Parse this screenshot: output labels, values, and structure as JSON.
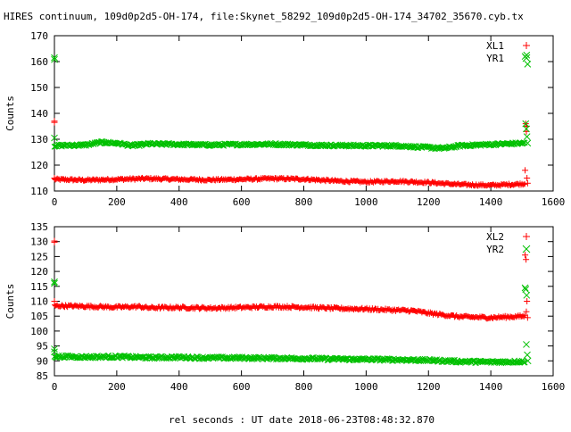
{
  "chart_data": [
    {
      "type": "scatter",
      "title": "HIRES continuum, 109d0p2d5-OH-174, file:Skynet_58292_109d0p2d5-OH-174_34702_35670.cyb.tx",
      "xlabel": "",
      "ylabel": "Counts",
      "xlim": [
        0,
        1600
      ],
      "ylim": [
        110,
        170
      ],
      "xticks": [
        "0",
        "200",
        "400",
        "600",
        "800",
        "1000",
        "1200",
        "1400",
        "1600"
      ],
      "yticks": [
        "110",
        "120",
        "130",
        "140",
        "150",
        "160",
        "170"
      ],
      "legend_position": "top-right",
      "series": [
        {
          "name": "XL1",
          "marker": "+",
          "color": "#ff0000",
          "baseline": [
            [
              0,
              114.5
            ],
            [
              100,
              114.2
            ],
            [
              200,
              114.5
            ],
            [
              300,
              114.8
            ],
            [
              400,
              114.5
            ],
            [
              500,
              114.3
            ],
            [
              600,
              114.5
            ],
            [
              700,
              114.8
            ],
            [
              800,
              114.6
            ],
            [
              900,
              113.9
            ],
            [
              1000,
              113.5
            ],
            [
              1100,
              113.8
            ],
            [
              1200,
              113.3
            ],
            [
              1300,
              112.5
            ],
            [
              1400,
              112.2
            ],
            [
              1510,
              112.8
            ]
          ],
          "outliers": [
            [
              0,
              137
            ],
            [
              0,
              136.5
            ],
            [
              0,
              115
            ],
            [
              1510,
              118
            ],
            [
              1512,
              136
            ],
            [
              1515,
              135
            ],
            [
              1514,
              133
            ],
            [
              1516,
              115
            ],
            [
              1518,
              113
            ]
          ]
        },
        {
          "name": "YR1",
          "marker": "x",
          "color": "#00c000",
          "baseline": [
            [
              0,
              127.5
            ],
            [
              100,
              127.8
            ],
            [
              150,
              128.8
            ],
            [
              200,
              128.5
            ],
            [
              250,
              127.5
            ],
            [
              300,
              128.2
            ],
            [
              400,
              128
            ],
            [
              500,
              127.8
            ],
            [
              600,
              128
            ],
            [
              700,
              128.1
            ],
            [
              800,
              127.8
            ],
            [
              900,
              127.6
            ],
            [
              1000,
              127.5
            ],
            [
              1100,
              127.5
            ],
            [
              1200,
              126.8
            ],
            [
              1250,
              126.5
            ],
            [
              1300,
              127.5
            ],
            [
              1400,
              128
            ],
            [
              1510,
              128.5
            ]
          ],
          "outliers": [
            [
              0,
              161.5
            ],
            [
              0,
              160.8
            ],
            [
              0,
              130.5
            ],
            [
              1510,
              162
            ],
            [
              1515,
              162.5
            ],
            [
              1518,
              159
            ],
            [
              1512,
              136
            ],
            [
              1514,
              134
            ],
            [
              1516,
              131
            ],
            [
              1518,
              128.5
            ]
          ]
        }
      ]
    },
    {
      "type": "scatter",
      "title": "",
      "xlabel": "rel seconds : UT date 2018-06-23T08:48:32.870",
      "ylabel": "Counts",
      "xlim": [
        0,
        1600
      ],
      "ylim": [
        85,
        135
      ],
      "xticks": [
        "0",
        "200",
        "400",
        "600",
        "800",
        "1000",
        "1200",
        "1400",
        "1600"
      ],
      "yticks": [
        "85",
        "90",
        "95",
        "100",
        "105",
        "110",
        "115",
        "120",
        "125",
        "130",
        "135"
      ],
      "legend_position": "top-right",
      "series": [
        {
          "name": "XL2",
          "marker": "+",
          "color": "#ff0000",
          "baseline": [
            [
              0,
              108.5
            ],
            [
              100,
              108.3
            ],
            [
              200,
              108
            ],
            [
              270,
              108.2
            ],
            [
              300,
              107.8
            ],
            [
              400,
              107.9
            ],
            [
              500,
              107.7
            ],
            [
              600,
              107.9
            ],
            [
              700,
              108.2
            ],
            [
              800,
              108
            ],
            [
              900,
              107.6
            ],
            [
              1000,
              107.4
            ],
            [
              1100,
              107
            ],
            [
              1150,
              106.8
            ],
            [
              1200,
              106
            ],
            [
              1300,
              104.8
            ],
            [
              1400,
              104.5
            ],
            [
              1510,
              105
            ]
          ],
          "outliers": [
            [
              0,
              130.2
            ],
            [
              0,
              129.8
            ],
            [
              0,
              110
            ],
            [
              1510,
              125.5
            ],
            [
              1513,
              124
            ],
            [
              1516,
              110
            ],
            [
              1514,
              106.5
            ],
            [
              1518,
              104.5
            ]
          ]
        },
        {
          "name": "YR2",
          "marker": "x",
          "color": "#00c000",
          "baseline": [
            [
              0,
              91.5
            ],
            [
              100,
              91.3
            ],
            [
              200,
              91.4
            ],
            [
              300,
              91.1
            ],
            [
              400,
              91.2
            ],
            [
              500,
              91
            ],
            [
              600,
              91
            ],
            [
              700,
              90.9
            ],
            [
              800,
              90.8
            ],
            [
              900,
              90.6
            ],
            [
              1000,
              90.5
            ],
            [
              1100,
              90.4
            ],
            [
              1200,
              90.2
            ],
            [
              1300,
              89.8
            ],
            [
              1400,
              89.6
            ],
            [
              1510,
              89.8
            ]
          ],
          "outliers": [
            [
              0,
              116.5
            ],
            [
              0,
              116
            ],
            [
              0,
              94
            ],
            [
              0,
              93
            ],
            [
              1510,
              114.5
            ],
            [
              1512,
              114
            ],
            [
              1515,
              112
            ],
            [
              1514,
              95.5
            ],
            [
              1517,
              92
            ],
            [
              1519,
              90
            ]
          ]
        }
      ]
    }
  ]
}
